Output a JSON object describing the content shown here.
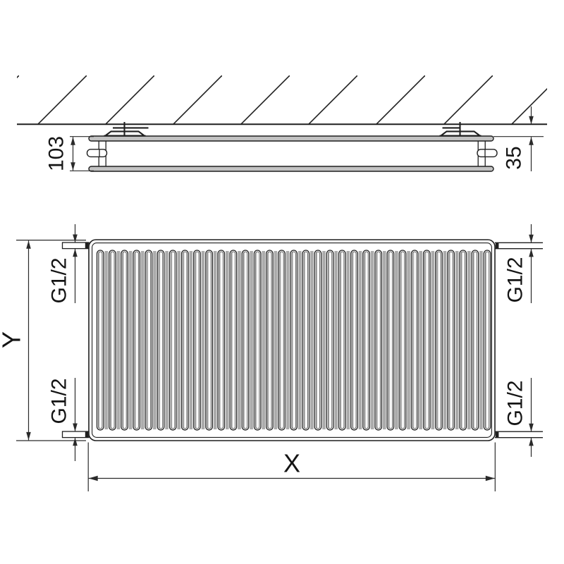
{
  "drawing": {
    "title_semantic": "radiator-technical-dimension-drawing",
    "side_view": {
      "depth_label": "103",
      "wall_distance_label": "35"
    },
    "front_view": {
      "width_label": "X",
      "height_label": "Y",
      "slot_count": 33,
      "connections": [
        {
          "position": "top-left",
          "label": "G1/2"
        },
        {
          "position": "top-right",
          "label": "G1/2"
        },
        {
          "position": "bottom-left",
          "label": "G1/2"
        },
        {
          "position": "bottom-right",
          "label": "G1/2"
        }
      ]
    },
    "colors": {
      "line": "#1f1f1f",
      "dim_line": "#2a2a2a",
      "panel_fill": "#c2c2c2",
      "slot_shade": "#ababab",
      "background": "#ffffff"
    }
  }
}
